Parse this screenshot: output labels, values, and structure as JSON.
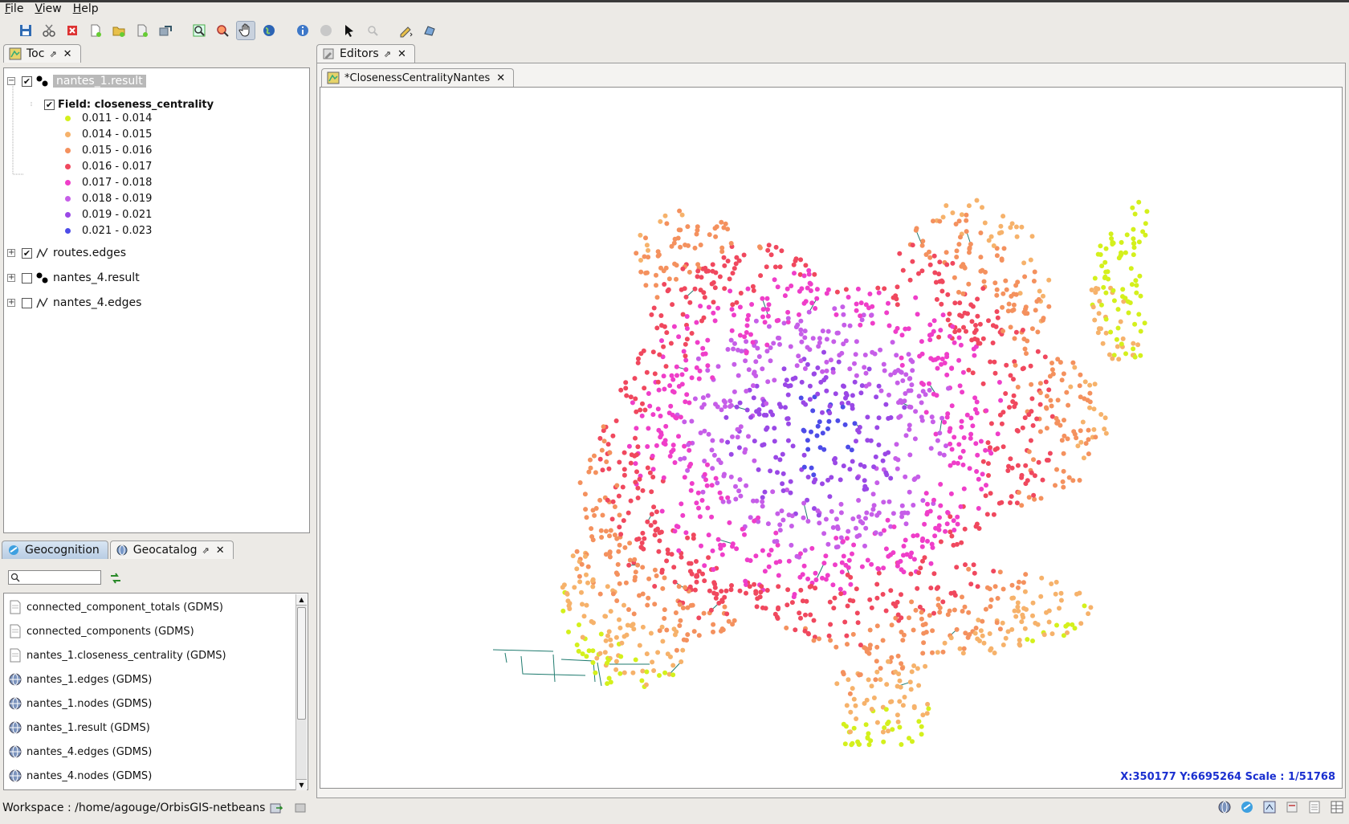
{
  "menu": [
    "File",
    "View",
    "Help"
  ],
  "toolbar_icons": [
    "save-icon",
    "cut-icon",
    "delete-icon",
    "new-file-icon",
    "open-folder-icon",
    "add-file-icon",
    "export-icon",
    "zoom-full-icon",
    "zoom-layer-icon",
    "pan-hand-icon",
    "globe-icon",
    "info-icon",
    "stop-icon",
    "select-arrow-icon",
    "zoom-in-icon",
    "edit-pencil-icon",
    "draw-polygon-icon"
  ],
  "toc": {
    "tab_label": "Toc",
    "layers": [
      {
        "name": "nantes_1.result",
        "checked": true,
        "expanded": true
      },
      {
        "name": "routes.edges",
        "checked": true,
        "expanded": false
      },
      {
        "name": "nantes_4.result",
        "checked": false,
        "expanded": false
      },
      {
        "name": "nantes_4.edges",
        "checked": false,
        "expanded": false
      }
    ],
    "field_label": "Field: closeness_centrality",
    "legend": [
      {
        "label": "0.011 - 0.014",
        "color": "#d4f01c"
      },
      {
        "label": "0.014 - 0.015",
        "color": "#f6b26b"
      },
      {
        "label": "0.015 - 0.016",
        "color": "#f4915e"
      },
      {
        "label": "0.016 - 0.017",
        "color": "#f0485e"
      },
      {
        "label": "0.017 - 0.018",
        "color": "#ef3ec9"
      },
      {
        "label": "0.018 - 0.019",
        "color": "#c65ee8"
      },
      {
        "label": "0.019 - 0.021",
        "color": "#9a48e6"
      },
      {
        "label": "0.021 - 0.023",
        "color": "#4d4ce8"
      }
    ]
  },
  "bottom_tabs": {
    "geocognition": "Geocognition",
    "geocatalog": "Geocatalog"
  },
  "catalog": [
    {
      "name": "connected_component_totals (GDMS)",
      "icon": "doc-icon"
    },
    {
      "name": "connected_components (GDMS)",
      "icon": "doc-icon"
    },
    {
      "name": "nantes_1.closeness_centrality (GDMS)",
      "icon": "doc-icon"
    },
    {
      "name": "nantes_1.edges (GDMS)",
      "icon": "globe-icon"
    },
    {
      "name": "nantes_1.nodes (GDMS)",
      "icon": "globe-icon"
    },
    {
      "name": "nantes_1.result (GDMS)",
      "icon": "globe-icon"
    },
    {
      "name": "nantes_4.edges (GDMS)",
      "icon": "globe-icon"
    },
    {
      "name": "nantes_4.nodes (GDMS)",
      "icon": "globe-icon"
    }
  ],
  "editors": {
    "tab_label": "Editors",
    "doc_tab": "*ClosenessCentralityNantes"
  },
  "map": {
    "coords": "X:350177  Y:6695264 Scale : 1/51768"
  },
  "status": {
    "workspace": "Workspace : /home/agouge/OrbisGIS-netbeans"
  }
}
